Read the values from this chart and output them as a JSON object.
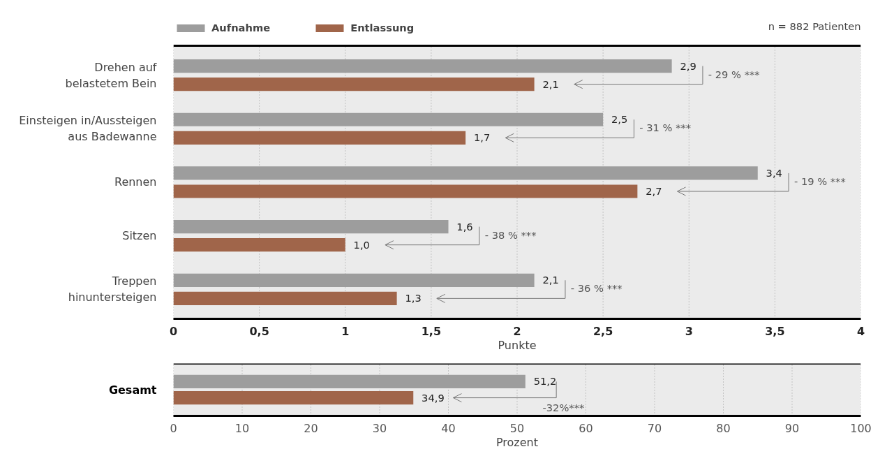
{
  "chart_data": [
    {
      "type": "bar",
      "orientation": "horizontal",
      "subtitle": "n = 882 Patienten",
      "categories": [
        "Drehen auf\nbelastetem Bein",
        "Einsteigen in/Aussteigen\naus Badewanne",
        "Rennen",
        "Sitzen",
        "Treppen\nhinuntersteigen"
      ],
      "series": [
        {
          "name": "Aufnahme",
          "color": "#9d9d9d",
          "values": [
            2.9,
            2.5,
            3.4,
            1.6,
            2.1
          ],
          "value_labels": [
            "2,9",
            "2,5",
            "3,4",
            "1,6",
            "2,1"
          ]
        },
        {
          "name": "Entlassung",
          "color": "#a0654a",
          "values": [
            2.1,
            1.7,
            2.7,
            1.0,
            1.3
          ],
          "value_labels": [
            "2,1",
            "1,7",
            "2,7",
            "1,0",
            "1,3"
          ]
        }
      ],
      "xlabel": "Punkte",
      "xlim": [
        0,
        4
      ],
      "xticks": [
        0,
        {
          "value": 0.5,
          "label": "0,5"
        },
        1,
        {
          "value": 1.5,
          "label": "1,5"
        },
        2,
        {
          "value": 2.5,
          "label": "2,5"
        },
        3,
        {
          "value": 3.5,
          "label": "3,5"
        },
        4
      ],
      "grid": "x",
      "legend": "top left",
      "annotations": [
        "- 29 % ***",
        "- 31 % ***",
        "- 19 % ***",
        "- 38 % ***",
        "- 36 % ***"
      ]
    },
    {
      "type": "bar",
      "orientation": "horizontal",
      "categories": [
        "Gesamt"
      ],
      "series": [
        {
          "color": "#9d9d9d",
          "values": [
            51.2
          ],
          "value_labels": [
            "51,2"
          ]
        },
        {
          "color": "#a0654a",
          "values": [
            34.9
          ],
          "value_labels": [
            "34,9"
          ]
        }
      ],
      "xlabel": "Prozent",
      "xlim": [
        0,
        100
      ],
      "xticks": [
        0,
        10,
        20,
        30,
        40,
        50,
        60,
        70,
        80,
        90,
        100
      ],
      "grid": "x",
      "annotations": [
        "-32%***"
      ]
    }
  ]
}
